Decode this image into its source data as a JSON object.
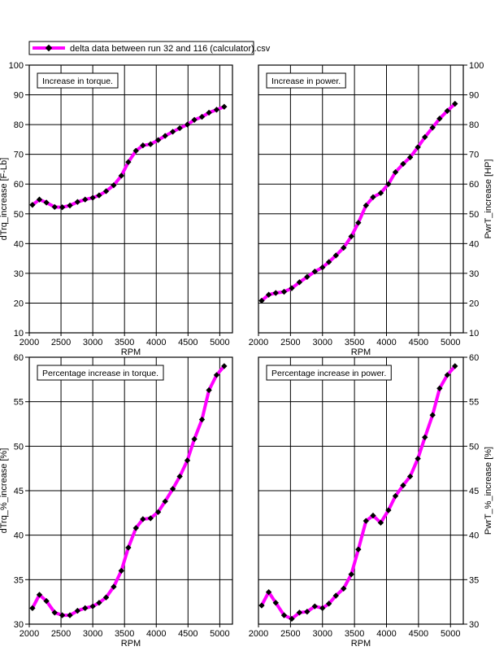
{
  "legend": {
    "label": "delta data between run 32 and 116 (calculator).csv",
    "line_color": "#ff00ff",
    "marker_color": "#000000"
  },
  "chart_data": [
    {
      "type": "line",
      "annotation": "Increase in torque.",
      "xlabel": "RPM",
      "ylabel": "dTrq_increase [F-Lb]",
      "ylabel_side": "left",
      "xlim": [
        2000,
        5200
      ],
      "ylim": [
        10,
        100
      ],
      "xticks": [
        2000,
        2500,
        3000,
        3500,
        4000,
        4500,
        5000
      ],
      "yticks": [
        10,
        20,
        30,
        40,
        50,
        60,
        70,
        80,
        90,
        100
      ],
      "grid": true,
      "series": [
        {
          "name": "delta data between run 32 and 116 (calculator).csv",
          "x": [
            2050,
            2160,
            2270,
            2400,
            2520,
            2640,
            2760,
            2880,
            3000,
            3100,
            3210,
            3330,
            3450,
            3560,
            3680,
            3790,
            3910,
            4030,
            4140,
            4260,
            4370,
            4490,
            4600,
            4720,
            4830,
            4950,
            5070
          ],
          "y": [
            53,
            54.8,
            53.8,
            52.3,
            52.2,
            52.8,
            54,
            54.8,
            55.4,
            56.2,
            57.6,
            59.6,
            62.8,
            67.4,
            71.2,
            73,
            73.4,
            74.8,
            76.2,
            77.6,
            78.8,
            80,
            81.6,
            82.6,
            84,
            85,
            86
          ]
        }
      ]
    },
    {
      "type": "line",
      "annotation": "Increase in power.",
      "xlabel": "RPM",
      "ylabel": "PwrT_increase [HP]",
      "ylabel_side": "right",
      "xlim": [
        2000,
        5200
      ],
      "ylim": [
        10,
        100
      ],
      "xticks": [
        2000,
        2500,
        3000,
        3500,
        4000,
        4500,
        5000
      ],
      "yticks": [
        10,
        20,
        30,
        40,
        50,
        60,
        70,
        80,
        90,
        100
      ],
      "grid": true,
      "series": [
        {
          "name": "delta data between run 32 and 116 (calculator).csv",
          "x": [
            2050,
            2160,
            2270,
            2400,
            2520,
            2640,
            2760,
            2880,
            3000,
            3100,
            3210,
            3330,
            3450,
            3560,
            3680,
            3790,
            3910,
            4030,
            4140,
            4260,
            4370,
            4490,
            4600,
            4720,
            4830,
            4950,
            5070
          ],
          "y": [
            20.8,
            22.8,
            23.4,
            23.8,
            25,
            27,
            28.8,
            30.6,
            32,
            33.8,
            36,
            38.6,
            42.4,
            47,
            52.8,
            55.6,
            57,
            60,
            64,
            66.8,
            69,
            72.4,
            75.8,
            79,
            82,
            84.6,
            87
          ]
        }
      ]
    },
    {
      "type": "line",
      "annotation": "Percentage increase in torque.",
      "xlabel": "RPM",
      "ylabel": "dTrq_%_increase [%]",
      "ylabel_side": "left",
      "xlim": [
        2000,
        5200
      ],
      "ylim": [
        30,
        60
      ],
      "xticks": [
        2000,
        2500,
        3000,
        3500,
        4000,
        4500,
        5000
      ],
      "yticks": [
        30,
        35,
        40,
        45,
        50,
        55,
        60
      ],
      "grid": true,
      "series": [
        {
          "name": "delta data between run 32 and 116 (calculator).csv",
          "x": [
            2050,
            2160,
            2270,
            2400,
            2520,
            2640,
            2760,
            2880,
            3000,
            3100,
            3210,
            3330,
            3450,
            3560,
            3680,
            3790,
            3910,
            4030,
            4140,
            4260,
            4370,
            4490,
            4600,
            4720,
            4830,
            4950,
            5070
          ],
          "y": [
            31.8,
            33.3,
            32.6,
            31.3,
            31,
            31,
            31.5,
            31.8,
            32,
            32.4,
            33,
            34.2,
            36,
            38.6,
            40.8,
            41.8,
            41.9,
            42.6,
            43.8,
            45.2,
            46.6,
            48.4,
            50.8,
            53,
            56.3,
            58,
            59
          ]
        }
      ]
    },
    {
      "type": "line",
      "annotation": "Percentage increase in power.",
      "xlabel": "RPM",
      "ylabel": "PwrT_%_increase [%]",
      "ylabel_side": "right",
      "xlim": [
        2000,
        5200
      ],
      "ylim": [
        30,
        60
      ],
      "xticks": [
        2000,
        2500,
        3000,
        3500,
        4000,
        4500,
        5000
      ],
      "yticks": [
        30,
        35,
        40,
        45,
        50,
        55,
        60
      ],
      "grid": true,
      "series": [
        {
          "name": "delta data between run 32 and 116 (calculator).csv",
          "x": [
            2050,
            2160,
            2270,
            2400,
            2520,
            2640,
            2760,
            2880,
            3000,
            3100,
            3210,
            3330,
            3450,
            3560,
            3680,
            3790,
            3910,
            4030,
            4140,
            4260,
            4370,
            4490,
            4600,
            4720,
            4830,
            4950,
            5070
          ],
          "y": [
            32.1,
            33.6,
            32.4,
            31,
            30.6,
            31.3,
            31.4,
            32,
            31.8,
            32.3,
            33.2,
            34,
            35.6,
            38.4,
            41.6,
            42.2,
            41.4,
            42.8,
            44.4,
            45.6,
            46.6,
            48.6,
            51,
            53.5,
            56.5,
            58,
            59
          ]
        }
      ]
    }
  ]
}
